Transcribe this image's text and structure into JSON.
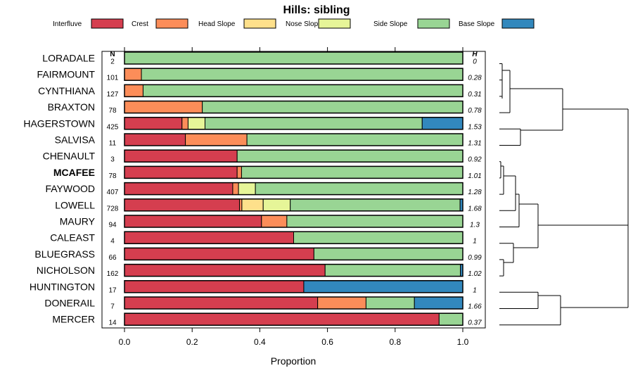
{
  "chart_data": {
    "type": "bar",
    "orientation": "horizontal-stacked",
    "title": "Hills: sibling",
    "xlabel": "Proportion",
    "xlim": [
      0,
      1
    ],
    "xticks": [
      "0.0",
      "0.2",
      "0.4",
      "0.6",
      "0.8",
      "1.0"
    ],
    "n_header": "N",
    "h_header": "H",
    "highlight": "MCAFEE",
    "series": [
      {
        "name": "Interfluve",
        "color": "#D53E4F"
      },
      {
        "name": "Crest",
        "color": "#FC8D59"
      },
      {
        "name": "Head Slope",
        "color": "#FEE08B"
      },
      {
        "name": "Nose Slope",
        "color": "#E6F598"
      },
      {
        "name": "Side Slope",
        "color": "#99D594"
      },
      {
        "name": "Base Slope",
        "color": "#3288BD"
      }
    ],
    "rows": [
      {
        "label": "LORADALE",
        "n": "2",
        "h": "0",
        "values": [
          0,
          0,
          0,
          0,
          1,
          0
        ]
      },
      {
        "label": "FAIRMOUNT",
        "n": "101",
        "h": "0.28",
        "values": [
          0,
          0.05,
          0,
          0,
          0.95,
          0
        ]
      },
      {
        "label": "CYNTHIANA",
        "n": "127",
        "h": "0.31",
        "values": [
          0,
          0.055,
          0,
          0,
          0.945,
          0
        ]
      },
      {
        "label": "BRAXTON",
        "n": "78",
        "h": "0.78",
        "values": [
          0,
          0.23,
          0,
          0,
          0.77,
          0
        ]
      },
      {
        "label": "HAGERSTOWN",
        "n": "425",
        "h": "1.53",
        "values": [
          0.17,
          0.018,
          0,
          0.05,
          0.642,
          0.12
        ]
      },
      {
        "label": "SALVISA",
        "n": "11",
        "h": "1.31",
        "values": [
          0.18,
          0.182,
          0,
          0,
          0.638,
          0
        ]
      },
      {
        "label": "CHENAULT",
        "n": "3",
        "h": "0.92",
        "values": [
          0.333,
          0,
          0,
          0,
          0.667,
          0
        ]
      },
      {
        "label": "MCAFEE",
        "n": "78",
        "h": "1.01",
        "values": [
          0.333,
          0.013,
          0,
          0,
          0.654,
          0
        ]
      },
      {
        "label": "FAYWOOD",
        "n": "407",
        "h": "1.28",
        "values": [
          0.32,
          0.017,
          0,
          0.05,
          0.613,
          0
        ]
      },
      {
        "label": "LOWELL",
        "n": "728",
        "h": "1.68",
        "values": [
          0.34,
          0.007,
          0.063,
          0.08,
          0.502,
          0.008
        ]
      },
      {
        "label": "MAURY",
        "n": "94",
        "h": "1.3",
        "values": [
          0.405,
          0.075,
          0,
          0,
          0.52,
          0
        ]
      },
      {
        "label": "CALEAST",
        "n": "4",
        "h": "1",
        "values": [
          0.5,
          0,
          0,
          0,
          0.5,
          0
        ]
      },
      {
        "label": "BLUEGRASS",
        "n": "66",
        "h": "0.99",
        "values": [
          0.56,
          0,
          0,
          0,
          0.44,
          0
        ]
      },
      {
        "label": "NICHOLSON",
        "n": "162",
        "h": "1.02",
        "values": [
          0.593,
          0,
          0,
          0,
          0.4,
          0.007
        ]
      },
      {
        "label": "HUNTINGTON",
        "n": "17",
        "h": "1",
        "values": [
          0.53,
          0,
          0,
          0,
          0,
          0.47
        ]
      },
      {
        "label": "DONERAIL",
        "n": "7",
        "h": "1.66",
        "values": [
          0.571,
          0.143,
          0,
          0,
          0.143,
          0.143
        ]
      },
      {
        "label": "MERCER",
        "n": "14",
        "h": "0.37",
        "values": [
          0.93,
          0,
          0,
          0,
          0.07,
          0
        ]
      }
    ],
    "dendrogram": "hierarchical clustering of rows (drawn at right)"
  }
}
